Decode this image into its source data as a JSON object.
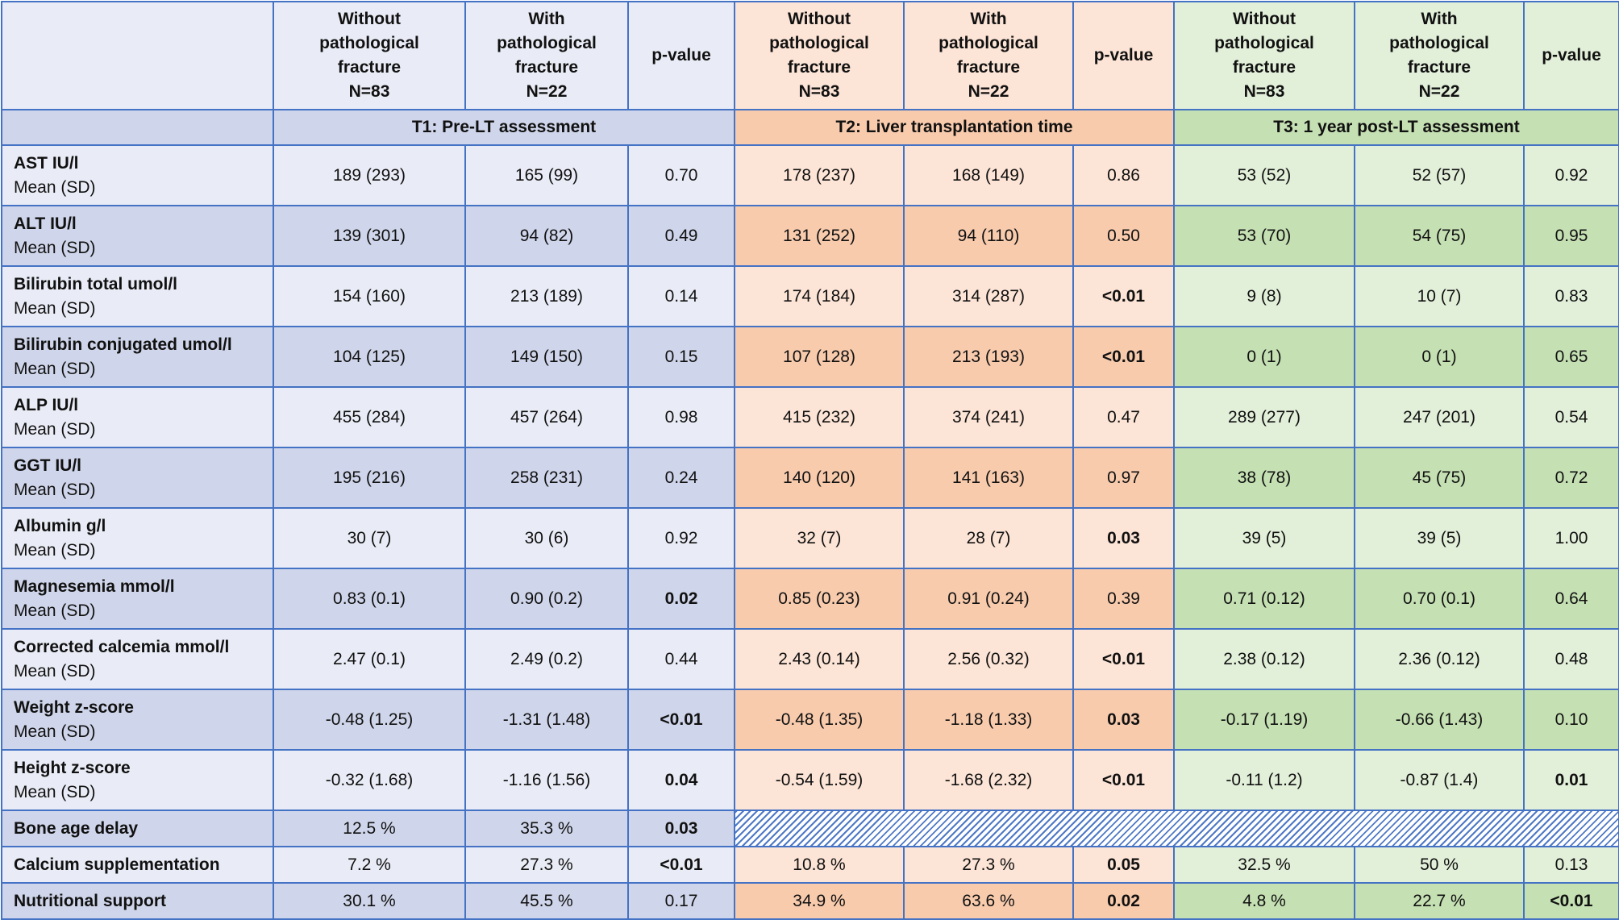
{
  "colors": {
    "border": "#4472c4",
    "t1_light": "#e9ecf6",
    "t1_dark": "#cfd5ea",
    "t2_light": "#fce4d6",
    "t2_dark": "#f8cbad",
    "t3_light": "#e2efd9",
    "t3_dark": "#c5e0b3",
    "hatch": "#4f79c6"
  },
  "header": {
    "columns": [
      {
        "lines": [
          "Without",
          "pathological",
          "fracture",
          "N=83"
        ]
      },
      {
        "lines": [
          "With",
          "pathological",
          "fracture",
          "N=22"
        ]
      },
      {
        "lines": [
          "p-value"
        ]
      },
      {
        "lines": [
          "Without",
          "pathological",
          "fracture",
          "N=83"
        ]
      },
      {
        "lines": [
          "With",
          "pathological",
          "fracture",
          "N=22"
        ]
      },
      {
        "lines": [
          "p-value"
        ]
      },
      {
        "lines": [
          "Without",
          "pathological",
          "fracture",
          "N=83"
        ]
      },
      {
        "lines": [
          "With",
          "pathological",
          "fracture",
          "N=22"
        ]
      },
      {
        "lines": [
          "p-value"
        ]
      }
    ]
  },
  "sections": [
    "T1: Pre-LT assessment",
    "T2: Liver transplantation time",
    "T3: 1 year post-LT assessment"
  ],
  "rows": [
    {
      "label": "AST IU/l",
      "sub": "Mean (SD)",
      "cells": [
        {
          "v": "189 (293)"
        },
        {
          "v": "165 (99)"
        },
        {
          "v": "0.70"
        },
        {
          "v": "178 (237)"
        },
        {
          "v": "168 (149)"
        },
        {
          "v": "0.86"
        },
        {
          "v": "53 (52)"
        },
        {
          "v": "52 (57)"
        },
        {
          "v": "0.92"
        }
      ]
    },
    {
      "label": "ALT IU/l",
      "sub": "Mean (SD)",
      "cells": [
        {
          "v": "139 (301)"
        },
        {
          "v": "94 (82)"
        },
        {
          "v": "0.49"
        },
        {
          "v": "131 (252)"
        },
        {
          "v": "94 (110)"
        },
        {
          "v": "0.50"
        },
        {
          "v": "53 (70)"
        },
        {
          "v": "54 (75)"
        },
        {
          "v": "0.95"
        }
      ]
    },
    {
      "label": "Bilirubin total umol/l",
      "sub": "Mean (SD)",
      "cells": [
        {
          "v": "154 (160)"
        },
        {
          "v": "213 (189)"
        },
        {
          "v": "0.14"
        },
        {
          "v": "174 (184)"
        },
        {
          "v": "314 (287)"
        },
        {
          "v": "<0.01",
          "b": true
        },
        {
          "v": "9 (8)"
        },
        {
          "v": "10 (7)"
        },
        {
          "v": "0.83"
        }
      ]
    },
    {
      "label": "Bilirubin conjugated umol/l",
      "sub": "Mean (SD)",
      "cells": [
        {
          "v": "104 (125)"
        },
        {
          "v": "149 (150)"
        },
        {
          "v": "0.15"
        },
        {
          "v": "107 (128)"
        },
        {
          "v": "213 (193)"
        },
        {
          "v": "<0.01",
          "b": true
        },
        {
          "v": "0 (1)"
        },
        {
          "v": "0 (1)"
        },
        {
          "v": "0.65"
        }
      ]
    },
    {
      "label": "ALP IU/l",
      "sub": "Mean (SD)",
      "cells": [
        {
          "v": "455 (284)"
        },
        {
          "v": "457 (264)"
        },
        {
          "v": "0.98"
        },
        {
          "v": "415 (232)"
        },
        {
          "v": "374 (241)"
        },
        {
          "v": "0.47"
        },
        {
          "v": "289 (277)"
        },
        {
          "v": "247 (201)"
        },
        {
          "v": "0.54"
        }
      ]
    },
    {
      "label": "GGT IU/l",
      "sub": "Mean (SD)",
      "cells": [
        {
          "v": "195 (216)"
        },
        {
          "v": "258 (231)"
        },
        {
          "v": "0.24"
        },
        {
          "v": "140 (120)"
        },
        {
          "v": "141 (163)"
        },
        {
          "v": "0.97"
        },
        {
          "v": "38 (78)"
        },
        {
          "v": "45 (75)"
        },
        {
          "v": "0.72"
        }
      ]
    },
    {
      "label": "Albumin g/l",
      "sub": "Mean (SD)",
      "cells": [
        {
          "v": "30 (7)"
        },
        {
          "v": "30 (6)"
        },
        {
          "v": "0.92"
        },
        {
          "v": "32 (7)"
        },
        {
          "v": "28 (7)"
        },
        {
          "v": "0.03",
          "b": true
        },
        {
          "v": "39 (5)"
        },
        {
          "v": "39 (5)"
        },
        {
          "v": "1.00"
        }
      ]
    },
    {
      "label": "Magnesemia mmol/l",
      "sub": "Mean (SD)",
      "cells": [
        {
          "v": "0.83 (0.1)"
        },
        {
          "v": "0.90 (0.2)"
        },
        {
          "v": "0.02",
          "b": true
        },
        {
          "v": "0.85 (0.23)"
        },
        {
          "v": "0.91 (0.24)"
        },
        {
          "v": "0.39"
        },
        {
          "v": "0.71 (0.12)"
        },
        {
          "v": "0.70 (0.1)"
        },
        {
          "v": "0.64"
        }
      ]
    },
    {
      "label": "Corrected calcemia mmol/l",
      "sub": "Mean (SD)",
      "cells": [
        {
          "v": "2.47 (0.1)"
        },
        {
          "v": "2.49 (0.2)"
        },
        {
          "v": "0.44"
        },
        {
          "v": "2.43 (0.14)"
        },
        {
          "v": "2.56 (0.32)"
        },
        {
          "v": "<0.01",
          "b": true
        },
        {
          "v": "2.38 (0.12)"
        },
        {
          "v": "2.36 (0.12)"
        },
        {
          "v": "0.48"
        }
      ]
    },
    {
      "label": "Weight z-score",
      "sub": "Mean (SD)",
      "cells": [
        {
          "v": "-0.48 (1.25)"
        },
        {
          "v": "-1.31 (1.48)"
        },
        {
          "v": "<0.01",
          "b": true
        },
        {
          "v": "-0.48 (1.35)"
        },
        {
          "v": "-1.18 (1.33)"
        },
        {
          "v": "0.03",
          "b": true
        },
        {
          "v": "-0.17 (1.19)"
        },
        {
          "v": "-0.66 (1.43)"
        },
        {
          "v": "0.10"
        }
      ]
    },
    {
      "label": "Height z-score",
      "sub": "Mean (SD)",
      "cells": [
        {
          "v": "-0.32 (1.68)"
        },
        {
          "v": "-1.16 (1.56)"
        },
        {
          "v": "0.04",
          "b": true
        },
        {
          "v": "-0.54 (1.59)"
        },
        {
          "v": "-1.68 (2.32)"
        },
        {
          "v": "<0.01",
          "b": true
        },
        {
          "v": "-0.11 (1.2)"
        },
        {
          "v": "-0.87 (1.4)"
        },
        {
          "v": "0.01",
          "b": true
        }
      ]
    },
    {
      "label": "Bone age delay",
      "sub": "",
      "hatch_after": 3,
      "cells": [
        {
          "v": "12.5 %"
        },
        {
          "v": "35.3 %"
        },
        {
          "v": "0.03",
          "b": true
        }
      ]
    },
    {
      "label": "Calcium supplementation",
      "sub": "",
      "cells": [
        {
          "v": "7.2 %"
        },
        {
          "v": "27.3 %"
        },
        {
          "v": "<0.01",
          "b": true
        },
        {
          "v": "10.8 %"
        },
        {
          "v": "27.3 %"
        },
        {
          "v": "0.05",
          "b": true
        },
        {
          "v": "32.5 %"
        },
        {
          "v": "50 %"
        },
        {
          "v": "0.13"
        }
      ]
    },
    {
      "label": "Nutritional support",
      "sub": "",
      "cells": [
        {
          "v": "30.1 %"
        },
        {
          "v": "45.5 %"
        },
        {
          "v": "0.17"
        },
        {
          "v": "34.9 %"
        },
        {
          "v": "63.6 %"
        },
        {
          "v": "0.02",
          "b": true
        },
        {
          "v": "4.8 %"
        },
        {
          "v": "22.7 %"
        },
        {
          "v": "<0.01",
          "b": true
        }
      ]
    }
  ]
}
